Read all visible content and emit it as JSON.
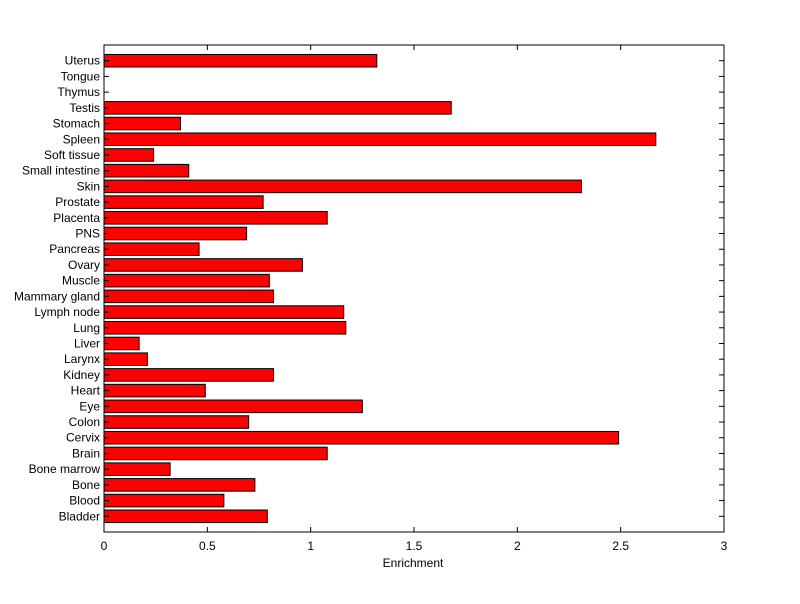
{
  "chart_data": {
    "type": "bar",
    "orientation": "horizontal",
    "xlabel": "Enrichment",
    "ylabel": "",
    "xlim": [
      0,
      3
    ],
    "xticks": [
      0,
      0.5,
      1,
      1.5,
      2,
      2.5,
      3
    ],
    "xtick_labels": [
      "0",
      "0.5",
      "1",
      "1.5",
      "2",
      "2.5",
      "3"
    ],
    "grid": false,
    "categories": [
      "Bladder",
      "Blood",
      "Bone",
      "Bone marrow",
      "Brain",
      "Cervix",
      "Colon",
      "Eye",
      "Heart",
      "Kidney",
      "Larynx",
      "Liver",
      "Lung",
      "Lymph node",
      "Mammary gland",
      "Muscle",
      "Ovary",
      "Pancreas",
      "PNS",
      "Placenta",
      "Prostate",
      "Skin",
      "Small intestine",
      "Soft tissue",
      "Spleen",
      "Stomach",
      "Testis",
      "Thymus",
      "Tongue",
      "Uterus"
    ],
    "values": [
      0.79,
      0.58,
      0.73,
      0.32,
      1.08,
      2.49,
      0.7,
      1.25,
      0.49,
      0.82,
      0.21,
      0.17,
      1.17,
      1.16,
      0.82,
      0.8,
      0.96,
      0.46,
      0.69,
      1.08,
      0.77,
      2.31,
      0.41,
      0.24,
      2.67,
      0.37,
      1.68,
      0,
      0,
      1.32
    ],
    "colors": {
      "bar_fill": "#ff0000",
      "bar_edge": "#000000",
      "axes": "#000000",
      "background": "#ffffff"
    }
  }
}
